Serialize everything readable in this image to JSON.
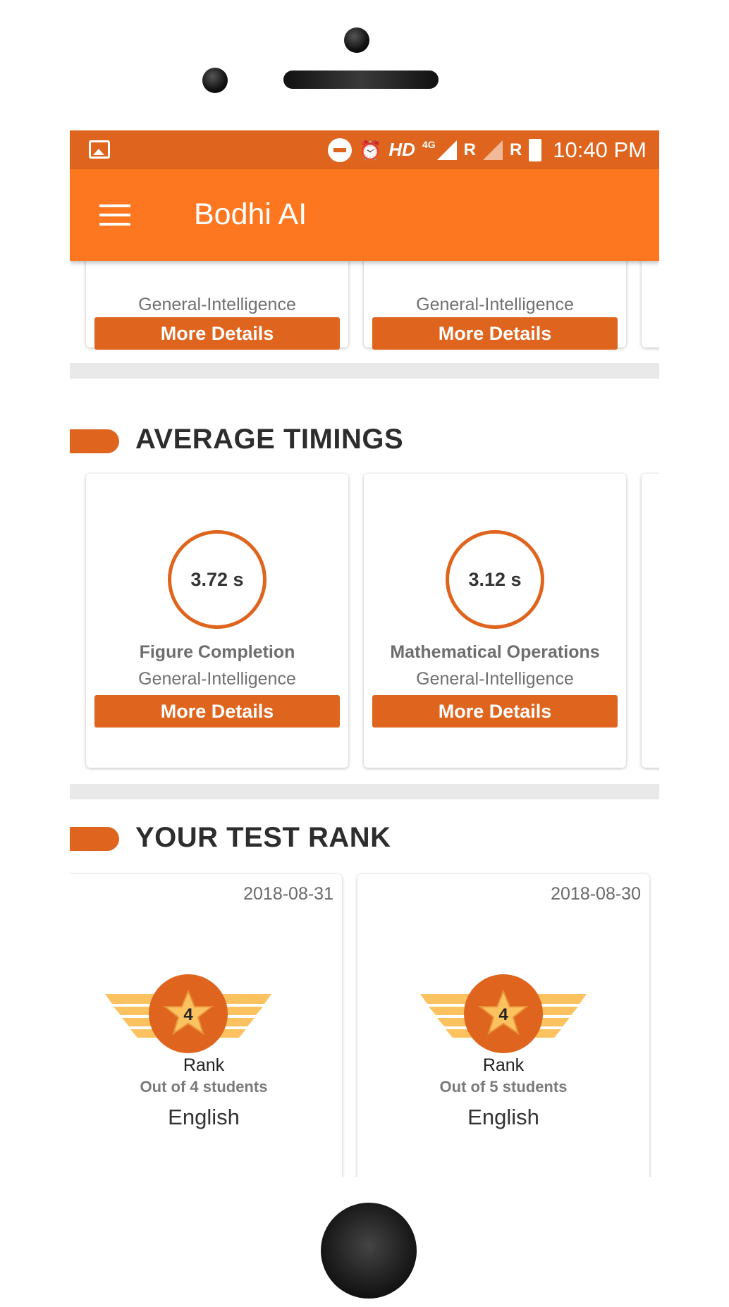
{
  "status_bar": {
    "network": "HD",
    "network_type": "4G",
    "roaming_1": "R",
    "roaming_2": "R",
    "time": "10:40 PM"
  },
  "app_bar": {
    "title": "Bodhi AI"
  },
  "top_cards": [
    {
      "subject": "General-Intelligence",
      "button": "More Details"
    },
    {
      "subject": "General-Intelligence",
      "button": "More Details"
    }
  ],
  "average_timings": {
    "title": "AVERAGE TIMINGS",
    "cards": [
      {
        "time": "3.72 s",
        "topic": "Figure Completion",
        "subject": "General-Intelligence",
        "button": "More Details"
      },
      {
        "time": "3.12 s",
        "topic": "Mathematical Operations",
        "subject": "General-Intelligence",
        "button": "More Details"
      }
    ]
  },
  "test_rank": {
    "title": "YOUR TEST RANK",
    "cards": [
      {
        "date": "2018-08-31",
        "rank": "4",
        "label": "Rank",
        "out_of": "Out of 4 students",
        "subject": "English"
      },
      {
        "date": "2018-08-30",
        "rank": "4",
        "label": "Rank",
        "out_of": "Out of 5 students",
        "subject": "English"
      }
    ]
  },
  "colors": {
    "status_bar": "#df651e",
    "app_bar": "#fd7620",
    "accent": "#df651e",
    "badge_wing": "#fbc25f"
  }
}
